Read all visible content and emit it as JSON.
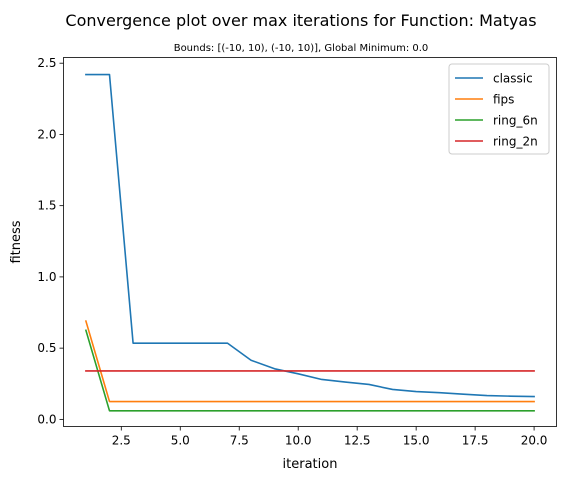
{
  "chart_data": {
    "type": "line",
    "title": "Convergence plot over max iterations for Function: Matyas",
    "subtitle": "Bounds: [(-10, 10), (-10, 10)], Global Minimum: 0.0",
    "xlabel": "iteration",
    "ylabel": "fitness",
    "xlim": [
      0.05,
      20.95
    ],
    "ylim": [
      -0.05,
      2.54
    ],
    "x_ticks": [
      2.5,
      5.0,
      7.5,
      10.0,
      12.5,
      15.0,
      17.5,
      20.0
    ],
    "x_tick_labels": [
      "2.5",
      "5.0",
      "7.5",
      "10.0",
      "12.5",
      "15.0",
      "17.5",
      "20.0"
    ],
    "y_ticks": [
      0.0,
      0.5,
      1.0,
      1.5,
      2.0,
      2.5
    ],
    "y_tick_labels": [
      "0.0",
      "0.5",
      "1.0",
      "1.5",
      "2.0",
      "2.5"
    ],
    "grid": false,
    "legend_position": "top-right",
    "x": [
      1,
      2,
      3,
      4,
      5,
      6,
      7,
      8,
      9,
      10,
      11,
      12,
      13,
      14,
      15,
      16,
      17,
      18,
      19,
      20
    ],
    "series": [
      {
        "name": "classic",
        "color": "#1f77b4",
        "values": [
          2.42,
          2.42,
          0.535,
          0.535,
          0.535,
          0.535,
          0.535,
          0.415,
          0.355,
          0.32,
          0.28,
          0.262,
          0.245,
          0.21,
          0.195,
          0.187,
          0.177,
          0.167,
          0.163,
          0.16
        ]
      },
      {
        "name": "fips",
        "color": "#ff7f0e",
        "values": [
          0.69,
          0.125,
          0.125,
          0.125,
          0.125,
          0.125,
          0.125,
          0.125,
          0.125,
          0.125,
          0.125,
          0.125,
          0.125,
          0.125,
          0.125,
          0.125,
          0.125,
          0.125,
          0.125,
          0.125
        ]
      },
      {
        "name": "ring_6n",
        "color": "#2ca02c",
        "values": [
          0.625,
          0.06,
          0.06,
          0.06,
          0.06,
          0.06,
          0.06,
          0.06,
          0.06,
          0.06,
          0.06,
          0.06,
          0.06,
          0.06,
          0.06,
          0.06,
          0.06,
          0.06,
          0.06,
          0.06
        ]
      },
      {
        "name": "ring_2n",
        "color": "#d62728",
        "values": [
          0.34,
          0.34,
          0.34,
          0.34,
          0.34,
          0.34,
          0.34,
          0.34,
          0.34,
          0.34,
          0.34,
          0.34,
          0.34,
          0.34,
          0.34,
          0.34,
          0.34,
          0.34,
          0.34,
          0.34
        ]
      }
    ]
  }
}
